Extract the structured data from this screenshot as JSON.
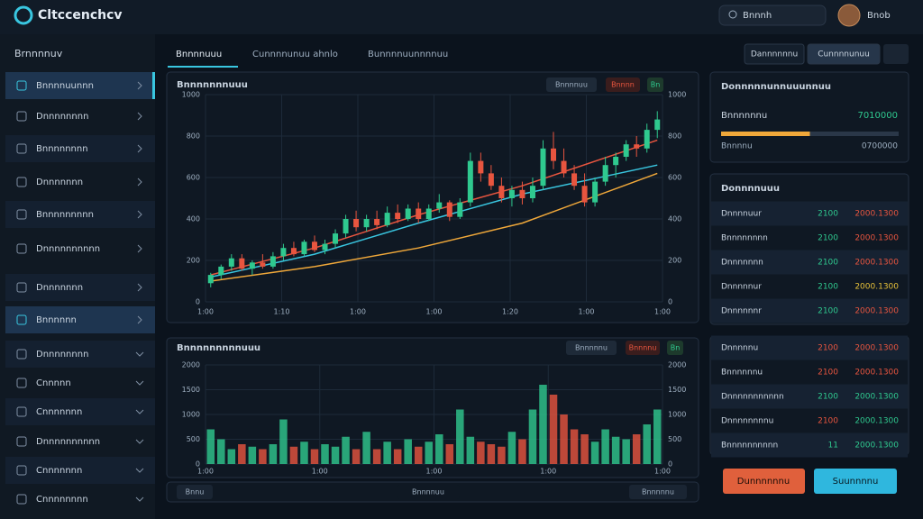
{
  "header": {
    "logo": "Cltccenchcv",
    "search": "Bnnnh",
    "user": "Bnob"
  },
  "sidebar": {
    "title": "Brnnnnuv",
    "items": [
      "Bnnnnuunnn",
      "Dnnnnnnnn",
      "Bnnnnnnnn",
      "Dnnnnnnn",
      "Bnnnnnnnnn",
      "Dnnnnnnnnnn",
      "Dnnnnnnn",
      "Bnnnnnn",
      "Dnnnnnnnn",
      "Cnnnnn",
      "Cnnnnnnn",
      "Dnnnnnnnnnn",
      "Cnnnnnnn",
      "Cnnnnnnnn"
    ]
  },
  "tabs": [
    "Bnnnnuuu",
    "Cunnnnunuu ahnlo",
    "Bunnnnuunnnnuu"
  ],
  "toolbar": [
    "Dannnnnnu",
    "Cunnnnunuu"
  ],
  "price_chart": {
    "type": "candlestick",
    "title": "Bnnnnnnnuuu",
    "badges": [
      "Bnnnnuu",
      "Bnnnn",
      "Bn"
    ],
    "ylim": [
      0,
      1000
    ],
    "yticks": [
      0,
      200,
      400,
      600,
      800,
      1000
    ],
    "xlabels": [
      "1:00",
      "1:10",
      "1:00",
      "1:00",
      "1:20",
      "1:00",
      "1:00"
    ],
    "up_color": "#2fc98f",
    "down_color": "#e8553f",
    "candles": [
      [
        90,
        140,
        70,
        130
      ],
      [
        130,
        180,
        110,
        170
      ],
      [
        170,
        230,
        150,
        210
      ],
      [
        210,
        230,
        150,
        160
      ],
      [
        160,
        200,
        130,
        190
      ],
      [
        190,
        230,
        160,
        170
      ],
      [
        170,
        240,
        160,
        220
      ],
      [
        220,
        280,
        200,
        260
      ],
      [
        260,
        290,
        220,
        230
      ],
      [
        230,
        300,
        220,
        290
      ],
      [
        290,
        320,
        240,
        250
      ],
      [
        250,
        300,
        230,
        280
      ],
      [
        280,
        350,
        260,
        330
      ],
      [
        330,
        420,
        310,
        400
      ],
      [
        400,
        440,
        340,
        360
      ],
      [
        360,
        420,
        340,
        400
      ],
      [
        400,
        440,
        350,
        370
      ],
      [
        370,
        460,
        360,
        430
      ],
      [
        430,
        470,
        380,
        400
      ],
      [
        400,
        470,
        390,
        450
      ],
      [
        450,
        480,
        380,
        400
      ],
      [
        400,
        470,
        390,
        450
      ],
      [
        450,
        520,
        430,
        480
      ],
      [
        480,
        490,
        390,
        410
      ],
      [
        410,
        500,
        400,
        480
      ],
      [
        480,
        720,
        460,
        680
      ],
      [
        680,
        720,
        580,
        620
      ],
      [
        620,
        660,
        540,
        560
      ],
      [
        560,
        600,
        480,
        500
      ],
      [
        500,
        560,
        460,
        540
      ],
      [
        540,
        580,
        470,
        500
      ],
      [
        500,
        600,
        480,
        560
      ],
      [
        560,
        780,
        540,
        740
      ],
      [
        740,
        820,
        640,
        680
      ],
      [
        680,
        740,
        600,
        620
      ],
      [
        620,
        660,
        540,
        560
      ],
      [
        560,
        620,
        460,
        480
      ],
      [
        480,
        600,
        460,
        580
      ],
      [
        580,
        700,
        560,
        660
      ],
      [
        660,
        720,
        600,
        700
      ],
      [
        700,
        780,
        680,
        760
      ],
      [
        760,
        800,
        700,
        740
      ],
      [
        740,
        860,
        720,
        830
      ],
      [
        830,
        920,
        790,
        880
      ]
    ],
    "lines": [
      {
        "color": "#f0a83a",
        "x": [
          0,
          10,
          20,
          30,
          43
        ],
        "values": [
          100,
          170,
          260,
          380,
          620
        ]
      },
      {
        "color": "#39c6e0",
        "x": [
          0,
          10,
          20,
          30,
          43
        ],
        "values": [
          120,
          230,
          380,
          520,
          660
        ]
      },
      {
        "color": "#e8553f",
        "x": [
          0,
          10,
          20,
          30,
          43
        ],
        "values": [
          130,
          260,
          420,
          560,
          780
        ]
      }
    ]
  },
  "volume_chart": {
    "type": "bar",
    "title": "Bnnnnnnnnnuuu",
    "badges": [
      "Bnnnnnu",
      "Bnnnnu",
      "Bn"
    ],
    "ylim": [
      0,
      2000
    ],
    "yticks": [
      0,
      500,
      1000,
      1500,
      2000
    ],
    "xlabels": [
      "1:00",
      "1:00",
      "1:00",
      "1:00",
      "1:00"
    ],
    "values": [
      700,
      500,
      300,
      400,
      350,
      300,
      400,
      900,
      350,
      450,
      300,
      400,
      350,
      550,
      300,
      650,
      300,
      450,
      300,
      500,
      350,
      450,
      600,
      400,
      1100,
      550,
      450,
      400,
      350,
      650,
      500,
      1100,
      1600,
      1400,
      1000,
      700,
      600,
      450,
      700,
      550,
      500,
      600,
      800,
      1100
    ]
  },
  "footer": [
    "Bnnu",
    "Bnnnnuu",
    "Bnnnnnu"
  ],
  "summary": {
    "title": "Donnnnnunnuuunnuu",
    "label": "Bnnnnnnu",
    "value": "7010000",
    "progress": 50,
    "progress_color": "#f0a83a",
    "sub_label": "Bnnnnu",
    "sub_value": "0700000"
  },
  "watch": {
    "title": "Donnnnuuu",
    "rows": [
      {
        "name": "Dnnnnuur",
        "change": "2100",
        "value": "2000.1300",
        "change_color": "#2fc98f",
        "value_color": "#e8553f"
      },
      {
        "name": "Bnnnnnnnn",
        "change": "2100",
        "value": "2000.1300",
        "change_color": "#2fc98f",
        "value_color": "#e8553f"
      },
      {
        "name": "Dnnnnnnn",
        "change": "2100",
        "value": "2000.1300",
        "change_color": "#2fc98f",
        "value_color": "#e8553f"
      },
      {
        "name": "Dnnnnnur",
        "change": "2100",
        "value": "2000.1300",
        "change_color": "#2fc98f",
        "value_color": "#e8c23a"
      },
      {
        "name": "Dnnnnnnr",
        "change": "2100",
        "value": "2000.1300",
        "change_color": "#2fc98f",
        "value_color": "#e8553f"
      }
    ]
  },
  "orders": {
    "rows": [
      {
        "name": "Dnnnnnu",
        "change": "2100",
        "value": "2000.1300",
        "change_color": "#e8553f",
        "value_color": "#e8553f"
      },
      {
        "name": "Bnnnnnnu",
        "change": "2100",
        "value": "2000.1300",
        "change_color": "#e8553f",
        "value_color": "#e8553f"
      },
      {
        "name": "Dnnnnnnnnnnn",
        "change": "2100",
        "value": "2000.1300",
        "change_color": "#2fc98f",
        "value_color": "#2fc98f"
      },
      {
        "name": "Dnnnnnnnnu",
        "change": "2100",
        "value": "2000.1300",
        "change_color": "#e8553f",
        "value_color": "#2fc98f"
      },
      {
        "name": "Bnnnnnnnnnn",
        "change": "11",
        "value": "2000.1300",
        "change_color": "#2fc98f",
        "value_color": "#2fc98f"
      }
    ]
  },
  "buttons": {
    "sell": "Dunnnnnnu",
    "buy": "Suunnnnu"
  }
}
